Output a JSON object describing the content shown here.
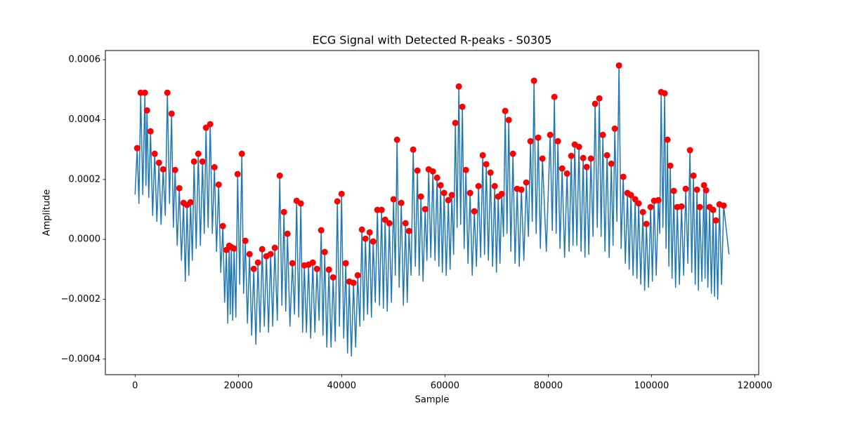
{
  "chart_data": {
    "type": "line",
    "title": "ECG Signal with Detected R-peaks - S0305",
    "xlabel": "Sample",
    "ylabel": "Amplitude",
    "xlim": [
      -5750,
      120750
    ],
    "ylim": [
      -0.000452,
      0.000631
    ],
    "xticks": [
      0,
      20000,
      40000,
      60000,
      80000,
      100000,
      120000
    ],
    "yticks": [
      {
        "value": -0.0004,
        "label": "−0.0004"
      },
      {
        "value": -0.0002,
        "label": "−0.0002"
      },
      {
        "value": 0,
        "label": "0.0000"
      },
      {
        "value": 0.0002,
        "label": "0.0002"
      },
      {
        "value": 0.0004,
        "label": "0.0004"
      },
      {
        "value": 0.0006,
        "label": "0.0006"
      }
    ],
    "grid": false,
    "series": [
      {
        "type": "line",
        "color": "#1f77b4",
        "x": [
          0,
          408,
          748,
          1088,
          1496,
          1904,
          2108,
          2312,
          2652,
          2992,
          3400,
          3808,
          4216,
          4624,
          5032,
          5440,
          5848,
          6256,
          6664,
          7072,
          7412,
          7752,
          8160,
          8568,
          8976,
          9384,
          9724,
          10064,
          10404,
          10744,
          11084,
          11424,
          11832,
          12240,
          12648,
          13056,
          13396,
          13736,
          14144,
          14552,
          14960,
          15368,
          15776,
          16184,
          16592,
          17000,
          17340,
          17680,
          17952,
          18224,
          18428,
          18632,
          18904,
          19176,
          19516,
          19856,
          20264,
          20672,
          21012,
          21352,
          21760,
          22168,
          22576,
          22984,
          23392,
          23800,
          24208,
          24616,
          25024,
          25432,
          25840,
          26248,
          26656,
          27064,
          27540,
          28016,
          28424,
          28832,
          29172,
          29512,
          29988,
          30464,
          30872,
          31280,
          31688,
          32096,
          32436,
          32776,
          33184,
          33592,
          34000,
          34408,
          34816,
          35224,
          35632,
          36040,
          36380,
          36720,
          37128,
          37536,
          37944,
          38352,
          38760,
          39168,
          39576,
          39984,
          40392,
          40800,
          41140,
          41480,
          41888,
          42296,
          42704,
          43112,
          43520,
          43928,
          44268,
          44608,
          45016,
          45424,
          45764,
          46104,
          46512,
          46920,
          47328,
          47736,
          48076,
          48416,
          48824,
          49232,
          49640,
          50048,
          50388,
          50728,
          51136,
          51544,
          51952,
          52360,
          52700,
          53040,
          53448,
          53856,
          54264,
          54672,
          55012,
          55352,
          55760,
          56168,
          56508,
          56848,
          57256,
          57664,
          58072,
          58480,
          58820,
          59160,
          59500,
          59840,
          60248,
          60656,
          60996,
          61336,
          61676,
          62016,
          62356,
          62696,
          63036,
          63376,
          63716,
          64056,
          64464,
          64872,
          65280,
          65688,
          66096,
          66504,
          66912,
          67320,
          67660,
          68000,
          68408,
          68816,
          69224,
          69632,
          69972,
          70312,
          70652,
          70992,
          71332,
          71672,
          72012,
          72352,
          72760,
          73168,
          73576,
          73984,
          74392,
          74800,
          75276,
          75752,
          76160,
          76568,
          76908,
          77248,
          77656,
          78064,
          78472,
          78880,
          79628,
          80376,
          80784,
          81192,
          81532,
          81872,
          82280,
          82688,
          83164,
          83640,
          84048,
          84456,
          84796,
          85136,
          85544,
          85952,
          86360,
          86768,
          87108,
          87448,
          87856,
          88264,
          88672,
          89080,
          89488,
          89896,
          90236,
          90576,
          90984,
          91392,
          91800,
          92208,
          92548,
          92888,
          93296,
          93704,
          94112,
          94520,
          94928,
          95336,
          95676,
          96016,
          96424,
          96832,
          97172,
          97512,
          97920,
          98328,
          98668,
          99008,
          99416,
          99824,
          100164,
          100504,
          100912,
          101320,
          101592,
          101864,
          102204,
          102544,
          102816,
          103088,
          103360,
          103632,
          103972,
          104312,
          104652,
          104992,
          105400,
          105808,
          106216,
          106624,
          107032,
          107440,
          107780,
          108120,
          108460,
          108800,
          109072,
          109344,
          109752,
          110160,
          110364,
          110568,
          110908,
          111248,
          111588,
          111928,
          112200,
          112472,
          112812,
          113152,
          113560,
          113968,
          115000
        ],
        "values": [
          0.00015,
          0.000305,
          0.00012,
          0.00049,
          0.00015,
          0.00049,
          0.00018,
          0.000431,
          0.00014,
          0.000361,
          8e-05,
          0.000286,
          6e-05,
          0.000256,
          5e-05,
          0.000234,
          8e-05,
          0.00049,
          0.00012,
          0.00042,
          4e-05,
          0.000232,
          -2e-05,
          0.000171,
          -7e-05,
          0.000122,
          -0.00014,
          0.000115,
          -0.00012,
          0.000124,
          -7e-05,
          0.00026,
          -3e-05,
          0.000286,
          -2e-05,
          0.00026,
          2e-05,
          0.000373,
          4e-05,
          0.000385,
          2e-05,
          0.000241,
          -4e-05,
          0.000183,
          -0.00011,
          4.46e-05,
          -0.00021,
          -3.52e-05,
          -0.00028,
          -2.11e-05,
          -0.00025,
          -2.58e-05,
          -0.00027,
          -3.05e-05,
          -0.00026,
          0.000218,
          -0.00015,
          0.000286,
          -0.00018,
          -4.7e-06,
          -0.00028,
          -4.92e-05,
          -0.00032,
          -9.85e-05,
          -0.00035,
          -7.74e-05,
          -0.00031,
          -3.28e-05,
          -0.00029,
          -5.63e-05,
          -0.00031,
          -4.92e-05,
          -0.00029,
          -2.81e-05,
          -0.00027,
          0.000213,
          -0.00022,
          9.14e-05,
          -0.00024,
          1.88e-05,
          -0.00029,
          -7.97e-05,
          -0.00025,
          0.000129,
          -0.00026,
          0.00012,
          -0.00031,
          -8.68e-05,
          -0.00031,
          -8.44e-05,
          -0.00033,
          -7.74e-05,
          -0.00031,
          -9.85e-05,
          -0.00027,
          3.05e-05,
          -0.00032,
          -4.22e-05,
          -0.00036,
          -0.000101,
          -0.00036,
          -0.000127,
          -0.00034,
          0.000127,
          -0.00029,
          0.000152,
          -0.00033,
          -7.97e-05,
          -0.00038,
          -0.000141,
          -0.00039,
          -0.000145,
          -0.00036,
          -0.00012,
          -0.00029,
          3.28e-05,
          -0.00027,
          2.3e-06,
          -0.00025,
          2.34e-05,
          -0.00026,
          -7e-06,
          -0.00021,
          9.85e-05,
          -0.00022,
          9.85e-05,
          -0.00023,
          6.57e-05,
          -0.00024,
          5.39e-05,
          -0.00021,
          0.000134,
          -0.00012,
          0.000333,
          -0.00016,
          0.000122,
          -0.00022,
          5.39e-05,
          -0.00021,
          2.81e-05,
          -0.00012,
          0.0003,
          -9e-05,
          0.00023,
          -0.00012,
          0.000143,
          -0.00014,
          0.000101,
          -7e-05,
          0.000234,
          -6e-05,
          0.000227,
          -7e-05,
          0.000206,
          -9e-05,
          0.000181,
          -0.00011,
          0.000155,
          -0.00012,
          0.000131,
          -0.0001,
          0.000148,
          -5e-05,
          0.000389,
          4e-05,
          0.000511,
          5e-05,
          0.000443,
          -3e-05,
          0.000232,
          -8e-05,
          0.000155,
          -0.00012,
          9.38e-05,
          -9e-05,
          0.000178,
          -6e-05,
          0.000281,
          -5e-05,
          0.000251,
          -7e-05,
          0.000223,
          -9e-05,
          0.000178,
          -0.00011,
          0.000143,
          -8e-05,
          0.000152,
          1e-05,
          0.000429,
          2e-05,
          0.000399,
          -4e-05,
          0.000286,
          -8e-05,
          0.000169,
          -9e-05,
          0.000166,
          -7e-05,
          0.00019,
          1e-05,
          0.000328,
          6e-05,
          0.00053,
          2e-05,
          0.00034,
          -3e-05,
          0.00027,
          -4e-05,
          0.000349,
          3e-05,
          0.000476,
          2e-05,
          0.000328,
          -3e-05,
          0.000237,
          -6e-05,
          0.00022,
          -4e-05,
          0.000279,
          -2e-05,
          0.000317,
          -2e-05,
          0.000309,
          -4e-05,
          0.000272,
          -6e-05,
          0.000242,
          -5e-05,
          0.00027,
          1e-05,
          0.000453,
          4e-05,
          0.000471,
          1e-05,
          0.000349,
          -4e-05,
          0.000281,
          -6e-05,
          0.000253,
          -2e-05,
          0.00037,
          6e-05,
          0.000581,
          -3e-05,
          0.000209,
          -8e-05,
          0.000155,
          -0.0001,
          0.000148,
          -0.00012,
          0.000134,
          -0.00013,
          0.00012,
          -0.00015,
          9.14e-05,
          -0.00017,
          5.16e-05,
          -0.00016,
          0.000108,
          -0.00014,
          0.000129,
          -0.00012,
          0.000131,
          2e-05,
          0.000492,
          4e-05,
          0.000488,
          -3e-05,
          0.000333,
          -9e-05,
          0.000246,
          -0.00013,
          0.000162,
          -0.00016,
          0.000108,
          -0.00015,
          0.00011,
          -0.00012,
          0.000169,
          -8e-05,
          0.000298,
          -0.00011,
          0.000213,
          -0.00015,
          0.000166,
          -0.00017,
          0.000108,
          -0.00014,
          0.000181,
          -0.00013,
          0.000164,
          -0.00016,
          0.000108,
          -0.00018,
          9.85e-05,
          -0.00019,
          6.33e-05,
          -0.0002,
          0.000117,
          -0.00015,
          0.000113,
          -5e-05
        ]
      },
      {
        "type": "scatter",
        "color": "#ff0000",
        "x": [
          408,
          1088,
          1904,
          2312,
          2992,
          3808,
          4624,
          5440,
          6256,
          7072,
          7752,
          8568,
          9384,
          10064,
          10744,
          11424,
          12240,
          13056,
          13736,
          14552,
          15368,
          16184,
          17000,
          17680,
          18224,
          18632,
          19176,
          19856,
          20672,
          21352,
          22168,
          22984,
          23800,
          24616,
          25432,
          26248,
          27064,
          28016,
          28832,
          29512,
          30464,
          31280,
          32096,
          32776,
          33592,
          34408,
          35224,
          36040,
          36720,
          37536,
          38352,
          39168,
          39984,
          40800,
          41480,
          42296,
          43112,
          43928,
          44608,
          45424,
          46104,
          46920,
          47736,
          48416,
          49232,
          50048,
          50728,
          51544,
          52360,
          53040,
          53856,
          54672,
          55352,
          56168,
          56848,
          57664,
          58480,
          59160,
          59840,
          60656,
          61336,
          62016,
          62696,
          63376,
          64056,
          64872,
          65688,
          66504,
          67320,
          68000,
          68816,
          69632,
          70312,
          70992,
          71672,
          72352,
          73168,
          73984,
          74800,
          75752,
          76568,
          77248,
          78064,
          78880,
          80376,
          81192,
          81872,
          82688,
          83640,
          84456,
          85136,
          85952,
          86768,
          87448,
          88264,
          89080,
          89896,
          90576,
          91392,
          92208,
          92888,
          93704,
          94520,
          95336,
          96016,
          96832,
          97512,
          98328,
          99008,
          99824,
          100504,
          101320,
          101864,
          102544,
          103088,
          103632,
          104312,
          104992,
          105808,
          106624,
          107440,
          108120,
          108800,
          109344,
          110160,
          110568,
          111248,
          111928,
          112472,
          113152,
          113968
        ],
        "values": [
          0.000305,
          0.00049,
          0.00049,
          0.000431,
          0.000361,
          0.000286,
          0.000256,
          0.000234,
          0.00049,
          0.00042,
          0.000232,
          0.000171,
          0.000122,
          0.000115,
          0.000124,
          0.00026,
          0.000286,
          0.00026,
          0.000373,
          0.000385,
          0.000241,
          0.000183,
          4.46e-05,
          -3.52e-05,
          -2.11e-05,
          -2.58e-05,
          -3.05e-05,
          0.000218,
          0.000286,
          -4.7e-06,
          -4.92e-05,
          -9.85e-05,
          -7.74e-05,
          -3.28e-05,
          -5.63e-05,
          -4.92e-05,
          -2.81e-05,
          0.000213,
          9.14e-05,
          1.88e-05,
          -7.97e-05,
          0.000129,
          0.00012,
          -8.68e-05,
          -8.44e-05,
          -7.74e-05,
          -9.85e-05,
          3.05e-05,
          -4.22e-05,
          -0.000101,
          -0.000127,
          0.000127,
          0.000152,
          -7.97e-05,
          -0.000141,
          -0.000145,
          -0.00012,
          3.28e-05,
          2.3e-06,
          2.34e-05,
          -7e-06,
          9.85e-05,
          9.85e-05,
          6.57e-05,
          5.39e-05,
          0.000134,
          0.000333,
          0.000122,
          5.39e-05,
          2.81e-05,
          0.0003,
          0.00023,
          0.000143,
          0.000101,
          0.000234,
          0.000227,
          0.000206,
          0.000181,
          0.000155,
          0.000131,
          0.000148,
          0.000389,
          0.000511,
          0.000443,
          0.000232,
          0.000155,
          9.38e-05,
          0.000178,
          0.000281,
          0.000251,
          0.000223,
          0.000178,
          0.000143,
          0.000152,
          0.000429,
          0.000399,
          0.000286,
          0.000169,
          0.000166,
          0.00019,
          0.000328,
          0.00053,
          0.00034,
          0.00027,
          0.000349,
          0.000476,
          0.000328,
          0.000237,
          0.00022,
          0.000279,
          0.000317,
          0.000309,
          0.000272,
          0.000242,
          0.00027,
          0.000453,
          0.000471,
          0.000349,
          0.000281,
          0.000253,
          0.00037,
          0.000581,
          0.000209,
          0.000155,
          0.000148,
          0.000134,
          0.00012,
          9.14e-05,
          5.16e-05,
          0.000108,
          0.000129,
          0.000131,
          0.000492,
          0.000488,
          0.000333,
          0.000246,
          0.000162,
          0.000108,
          0.00011,
          0.000169,
          0.000298,
          0.000213,
          0.000166,
          0.000108,
          0.000181,
          0.000164,
          0.000108,
          9.85e-05,
          6.33e-05,
          0.000117,
          0.000113
        ]
      }
    ]
  }
}
